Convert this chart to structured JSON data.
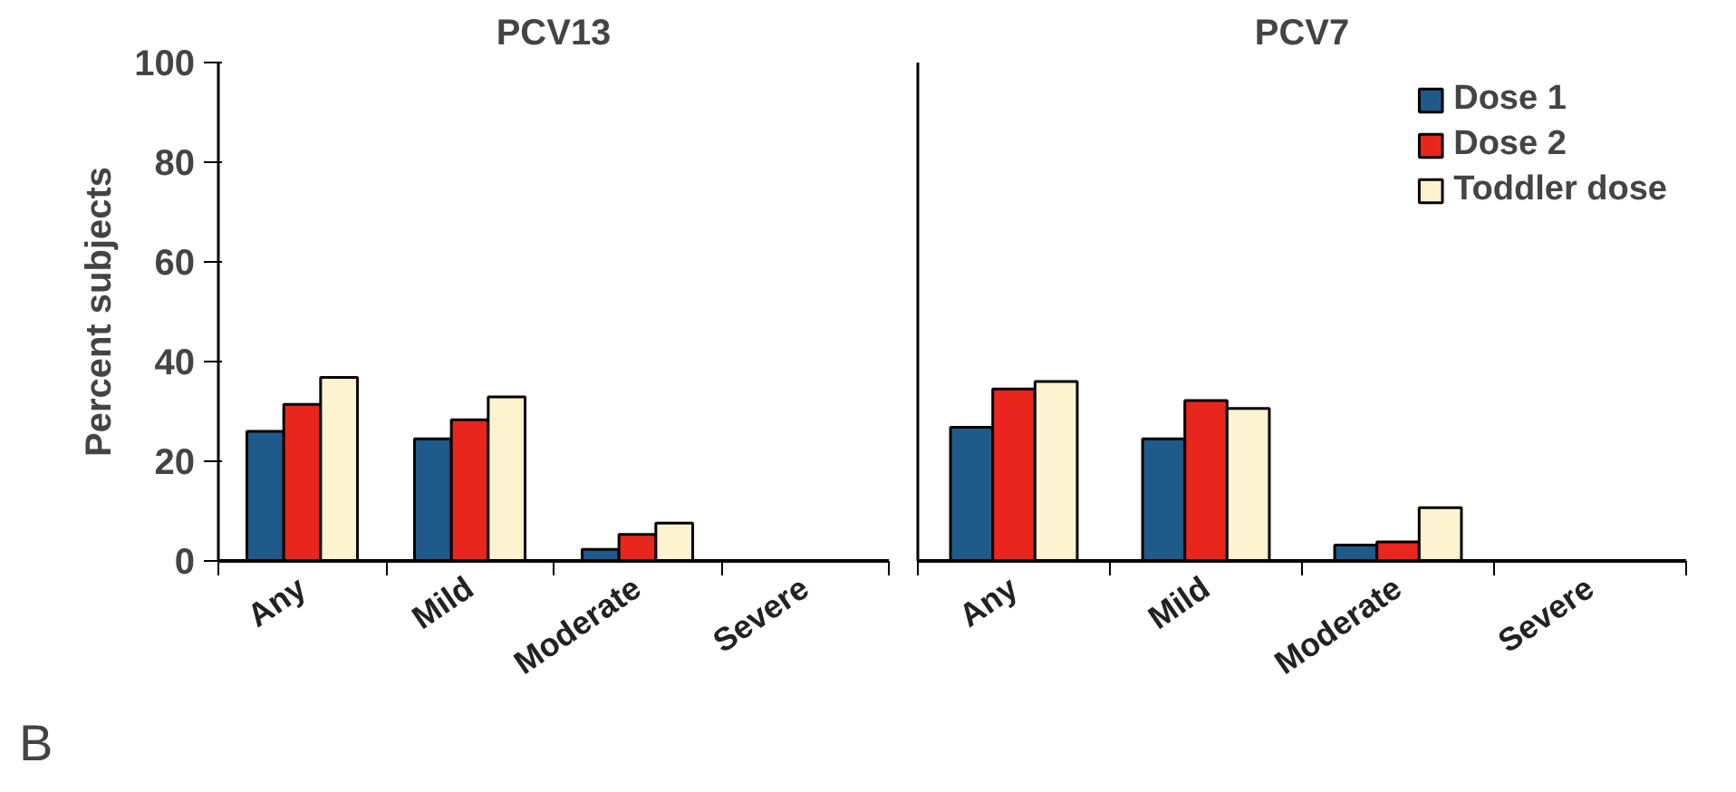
{
  "chart_data": [
    {
      "type": "bar",
      "title": "PCV13",
      "ylabel": "Percent subjects",
      "categories": [
        "Any",
        "Mild",
        "Moderate",
        "Severe"
      ],
      "series": [
        {
          "color": "#1f5a8a",
          "values": [
            26,
            24.5,
            2.3,
            null
          ]
        },
        {
          "color": "#e8261e",
          "values": [
            31.4,
            28.3,
            5.3,
            null
          ]
        },
        {
          "color": "#fdf3d0",
          "values": [
            36.8,
            32.9,
            7.6,
            null
          ]
        }
      ],
      "ylim": [
        0,
        100
      ],
      "yticks": [
        0,
        20,
        40,
        60,
        80,
        100
      ],
      "grid": false,
      "legend": false,
      "annotations": [
        "B"
      ]
    },
    {
      "type": "bar",
      "title": "PCV7",
      "categories": [
        "Any",
        "Mild",
        "Moderate",
        "Severe"
      ],
      "series": [
        {
          "name": "Dose 1",
          "color": "#1f5a8a",
          "values": [
            26.8,
            24.5,
            3.2,
            null
          ]
        },
        {
          "name": "Dose 2",
          "color": "#e8261e",
          "values": [
            34.5,
            32.2,
            3.8,
            null
          ]
        },
        {
          "name": "Toddler dose",
          "color": "#fdf3d0",
          "values": [
            36.0,
            30.6,
            10.7,
            null
          ]
        }
      ],
      "ylim": [
        0,
        100
      ],
      "yticks": [
        0,
        20,
        40,
        60,
        80,
        100
      ],
      "grid": false,
      "legend": "top right",
      "tick_labels": "x"
    }
  ]
}
